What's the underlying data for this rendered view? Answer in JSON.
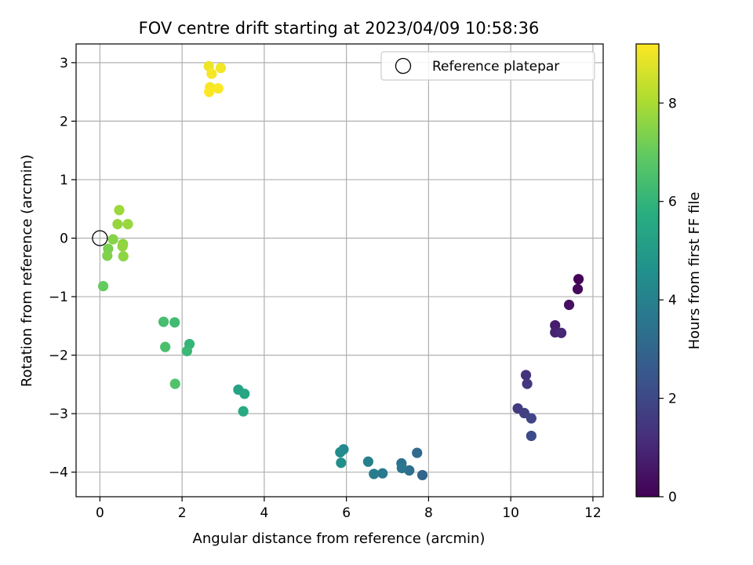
{
  "chart_data": {
    "type": "scatter",
    "title": "FOV centre drift starting at 2023/04/09 10:58:36",
    "xlabel": "Angular distance from reference (arcmin)",
    "ylabel": "Rotation from reference (arcmin)",
    "xlim": [
      -0.58,
      12.25
    ],
    "ylim": [
      -4.42,
      3.32
    ],
    "xticks": [
      0,
      2,
      4,
      6,
      8,
      10,
      12
    ],
    "yticks": [
      -4,
      -3,
      -2,
      -1,
      0,
      1,
      2,
      3
    ],
    "grid": true,
    "legend": {
      "placement": "top-right",
      "entries": [
        "Reference platepar"
      ]
    },
    "reference_point": {
      "x": 0,
      "y": 0
    },
    "colorbar": {
      "label": "Hours from first FF file",
      "range": [
        0,
        9.2
      ],
      "ticks": [
        0,
        2,
        4,
        6,
        8
      ],
      "colormap": "viridis"
    },
    "points": [
      {
        "x": 11.65,
        "y": -0.7,
        "h": 0.05
      },
      {
        "x": 11.63,
        "y": -0.87,
        "h": 0.2
      },
      {
        "x": 11.42,
        "y": -1.14,
        "h": 0.4
      },
      {
        "x": 11.08,
        "y": -1.49,
        "h": 0.7
      },
      {
        "x": 11.08,
        "y": -1.61,
        "h": 0.85
      },
      {
        "x": 11.23,
        "y": -1.62,
        "h": 1.0
      },
      {
        "x": 10.37,
        "y": -2.34,
        "h": 1.3
      },
      {
        "x": 10.4,
        "y": -2.49,
        "h": 1.45
      },
      {
        "x": 10.17,
        "y": -2.91,
        "h": 1.6
      },
      {
        "x": 10.33,
        "y": -2.99,
        "h": 1.75
      },
      {
        "x": 10.5,
        "y": -3.08,
        "h": 1.9
      },
      {
        "x": 10.5,
        "y": -3.38,
        "h": 2.05
      },
      {
        "x": 7.85,
        "y": -4.05,
        "h": 3.0
      },
      {
        "x": 7.72,
        "y": -3.67,
        "h": 3.15
      },
      {
        "x": 7.53,
        "y": -3.97,
        "h": 3.3
      },
      {
        "x": 7.34,
        "y": -3.85,
        "h": 3.45
      },
      {
        "x": 7.35,
        "y": -3.93,
        "h": 3.55
      },
      {
        "x": 6.88,
        "y": -4.02,
        "h": 3.7
      },
      {
        "x": 6.67,
        "y": -4.03,
        "h": 3.85
      },
      {
        "x": 6.53,
        "y": -3.82,
        "h": 4.0
      },
      {
        "x": 5.93,
        "y": -3.61,
        "h": 4.25
      },
      {
        "x": 5.85,
        "y": -3.66,
        "h": 4.4
      },
      {
        "x": 5.87,
        "y": -3.84,
        "h": 4.55
      },
      {
        "x": 3.37,
        "y": -2.59,
        "h": 5.3
      },
      {
        "x": 3.52,
        "y": -2.66,
        "h": 5.45
      },
      {
        "x": 3.49,
        "y": -2.96,
        "h": 5.6
      },
      {
        "x": 2.18,
        "y": -1.81,
        "h": 6.0
      },
      {
        "x": 2.12,
        "y": -1.93,
        "h": 6.15
      },
      {
        "x": 1.82,
        "y": -1.44,
        "h": 6.3
      },
      {
        "x": 1.55,
        "y": -1.43,
        "h": 6.4
      },
      {
        "x": 1.59,
        "y": -1.86,
        "h": 6.5
      },
      {
        "x": 1.83,
        "y": -2.49,
        "h": 6.6
      },
      {
        "x": 0.08,
        "y": -0.82,
        "h": 7.0
      },
      {
        "x": 0.2,
        "y": -0.18,
        "h": 7.3
      },
      {
        "x": 0.18,
        "y": -0.3,
        "h": 7.4
      },
      {
        "x": 0.32,
        "y": -0.02,
        "h": 7.5
      },
      {
        "x": 0.56,
        "y": -0.1,
        "h": 7.55
      },
      {
        "x": 0.57,
        "y": -0.31,
        "h": 7.6
      },
      {
        "x": 0.55,
        "y": -0.14,
        "h": 7.65
      },
      {
        "x": 0.43,
        "y": 0.24,
        "h": 7.7
      },
      {
        "x": 0.68,
        "y": 0.24,
        "h": 7.75
      },
      {
        "x": 0.47,
        "y": 0.48,
        "h": 7.8
      },
      {
        "x": 2.65,
        "y": 2.94,
        "h": 9.0
      },
      {
        "x": 2.94,
        "y": 2.91,
        "h": 9.05
      },
      {
        "x": 2.72,
        "y": 2.81,
        "h": 9.1
      },
      {
        "x": 2.68,
        "y": 2.58,
        "h": 9.1
      },
      {
        "x": 2.88,
        "y": 2.56,
        "h": 9.15
      },
      {
        "x": 2.66,
        "y": 2.5,
        "h": 9.2
      }
    ]
  }
}
